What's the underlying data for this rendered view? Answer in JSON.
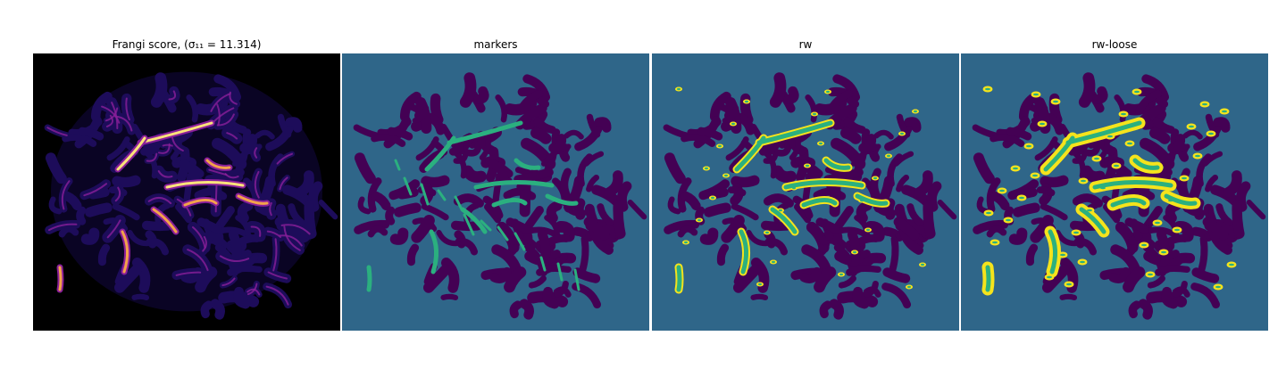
{
  "panels": [
    {
      "title": "Frangi score, (σ₁₁ = 11.314)",
      "kind": "frangi"
    },
    {
      "title": "markers",
      "kind": "markers"
    },
    {
      "title": "rw",
      "kind": "rw"
    },
    {
      "title": "rw-loose",
      "kind": "rw-loose"
    }
  ],
  "colors": {
    "frangi_background": "#000000",
    "frangi_low": "#1d0c5a",
    "frangi_mid": "#8a1f9a",
    "frangi_high": "#f3a34a",
    "frangi_peak": "#fbe37a",
    "teal_background": "#2f6689",
    "dark_purple": "#440154",
    "green": "#2bb07f",
    "yellow": "#f5e31c"
  }
}
